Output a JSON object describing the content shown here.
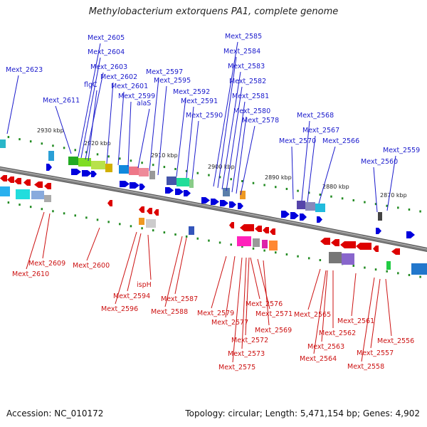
{
  "title": "Methylobacterium extorquens PA1, complete genome",
  "footer": {
    "accession": "Accession: NC_010172",
    "topology": "Topology: circular; Length: 5,471,154 bp; Genes: 4,902"
  },
  "colors": {
    "forward": "#0000dd",
    "reverse": "#dd0000",
    "backbone": "#808080",
    "tick": "#228b22",
    "forward_label": "#1a1acc",
    "reverse_label": "#cc1111"
  },
  "kbp_ticks": [
    "2930 kbp",
    "2920 kbp",
    "2910 kbp",
    "2900 kbp",
    "2890 kbp",
    "2880 kbp",
    "2870 kbp"
  ],
  "forward_labels": [
    "Mext_2623",
    "Mext_2611",
    "Mext_2605",
    "Mext_2604",
    "Mext_2603",
    "flgC",
    "Mext_2602",
    "Mext_2601",
    "Mext_2599",
    "alaS",
    "Mext_2597",
    "Mext_2595",
    "Mext_2592",
    "Mext_2591",
    "Mext_2590",
    "Mext_2585",
    "Mext_2584",
    "Mext_2583",
    "Mext_2582",
    "Mext_2581",
    "Mext_2580",
    "Mext_2578",
    "Mext_2568",
    "Mext_2567",
    "Mext_2570",
    "Mext_2566",
    "Mext_2559",
    "Mext_2560"
  ],
  "reverse_labels": [
    "Mext_2609",
    "Mext_2610",
    "Mext_2600",
    "ispH",
    "Mext_2594",
    "Mext_2596",
    "Mext_2587",
    "Mext_2588",
    "Mext_2576",
    "Mext_2579",
    "Mext_2571",
    "Mext_2577",
    "Mext_2569",
    "Mext_2572",
    "Mext_2573",
    "Mext_2575",
    "Mext_2565",
    "Mext_2561",
    "Mext_2562",
    "Mext_2563",
    "Mext_2564",
    "Mext_2556",
    "Mext_2557",
    "Mext_2558"
  ]
}
